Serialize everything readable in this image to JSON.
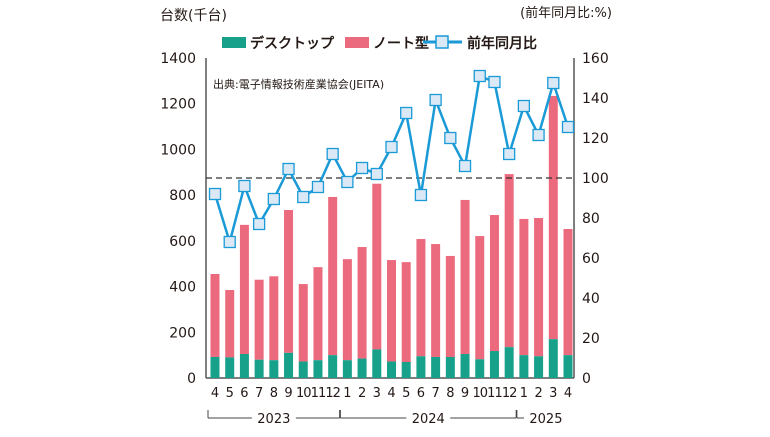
{
  "chart_data": {
    "type": "bar+line",
    "left_axis_label": "台数(千台)",
    "right_axis_label": "(前年同月比:%)",
    "source": "出典:電子情報技術産業協会(JEITA)",
    "ylim_left": [
      0,
      1400
    ],
    "yticks_left": [
      0,
      200,
      400,
      600,
      800,
      1000,
      1200,
      1400
    ],
    "ylim_right": [
      0,
      160
    ],
    "yticks_right": [
      0,
      20,
      40,
      60,
      80,
      100,
      120,
      140,
      160
    ],
    "reference_line": 100,
    "categories": [
      "4",
      "5",
      "6",
      "7",
      "8",
      "9",
      "10",
      "11",
      "12",
      "1",
      "2",
      "3",
      "4",
      "5",
      "6",
      "7",
      "8",
      "9",
      "10",
      "11",
      "12",
      "1",
      "2",
      "3",
      "4"
    ],
    "years": [
      {
        "label": "2023",
        "from": 0,
        "to": 8
      },
      {
        "label": "2024",
        "from": 9,
        "to": 20
      },
      {
        "label": "2025",
        "from": 21,
        "to": 24
      }
    ],
    "series": [
      {
        "name": "デスクトップ",
        "type": "stacked-bar",
        "color": "#17a08a",
        "values": [
          92,
          90,
          105,
          80,
          78,
          110,
          72,
          78,
          100,
          78,
          85,
          125,
          72,
          70,
          95,
          92,
          92,
          105,
          82,
          118,
          135,
          100,
          95,
          170,
          100
        ]
      },
      {
        "name": "ノート型",
        "type": "stacked-bar",
        "color": "#ec6a7d",
        "values": [
          363,
          295,
          565,
          350,
          367,
          625,
          339,
          407,
          692,
          442,
          488,
          725,
          444,
          437,
          513,
          494,
          442,
          674,
          539,
          595,
          757,
          596,
          605,
          1064,
          552
        ]
      },
      {
        "name": "前年同月比",
        "type": "line",
        "axis": "right",
        "color": "#1a9ad6",
        "values": [
          92,
          68,
          96,
          77,
          89.5,
          104.5,
          90.5,
          95.5,
          112,
          98,
          105,
          102,
          115.5,
          132.5,
          91.5,
          139,
          120,
          106,
          151,
          148,
          112,
          136,
          121.5,
          147.5,
          125.5
        ]
      }
    ]
  }
}
